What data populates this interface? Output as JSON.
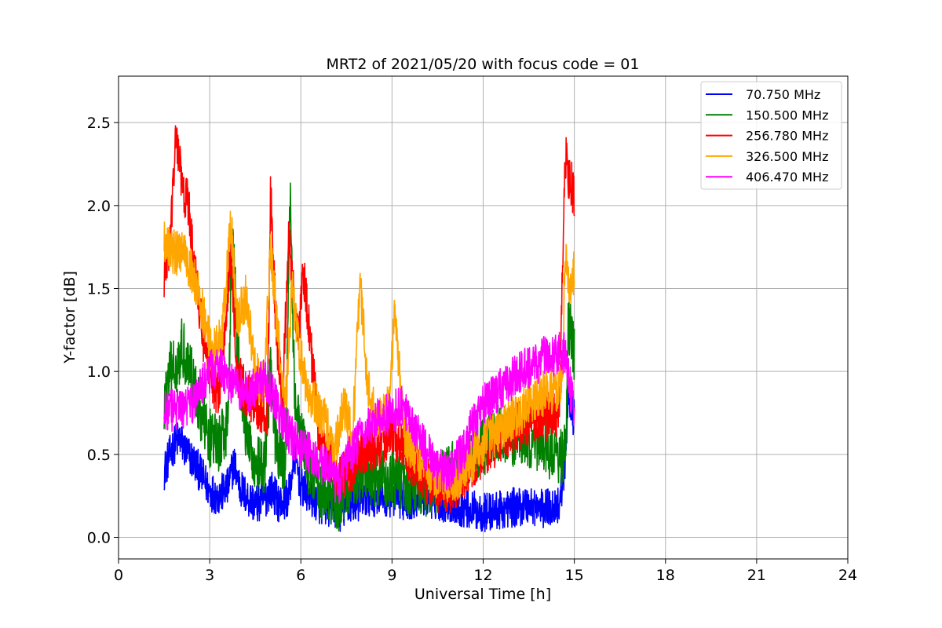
{
  "chart_data": {
    "type": "line",
    "title": "MRT2 of 2021/05/20 with focus code = 01",
    "xlabel": "Universal Time [h]",
    "ylabel": "Y-factor [dB]",
    "xlim": [
      0,
      24
    ],
    "ylim": [
      -0.13,
      2.78
    ],
    "xticks": [
      0,
      3,
      6,
      9,
      12,
      15,
      18,
      21,
      24
    ],
    "yticks": [
      0.0,
      0.5,
      1.0,
      1.5,
      2.0,
      2.5
    ],
    "xtick_labels": [
      "0",
      "3",
      "6",
      "9",
      "12",
      "15",
      "18",
      "21",
      "24"
    ],
    "ytick_labels": [
      "0.0",
      "0.5",
      "1.0",
      "1.5",
      "2.0",
      "2.5"
    ],
    "grid": true,
    "legend_position": "top-right",
    "series": [
      {
        "name": "70.750 MHz",
        "color": "#0000ff",
        "x": [
          1.5,
          1.8,
          2.0,
          2.2,
          2.5,
          2.8,
          3.0,
          3.3,
          3.6,
          3.8,
          4.0,
          4.2,
          4.5,
          4.8,
          5.0,
          5.3,
          5.6,
          5.8,
          6.0,
          6.3,
          6.6,
          7.0,
          7.3,
          7.6,
          8.0,
          8.5,
          9.0,
          9.5,
          10.0,
          10.5,
          11.0,
          11.5,
          12.0,
          12.5,
          13.0,
          13.5,
          14.0,
          14.5,
          14.7,
          14.8,
          15.0
        ],
        "y": [
          0.4,
          0.55,
          0.6,
          0.52,
          0.45,
          0.35,
          0.28,
          0.25,
          0.3,
          0.45,
          0.3,
          0.25,
          0.2,
          0.22,
          0.3,
          0.2,
          0.25,
          0.5,
          0.3,
          0.25,
          0.2,
          0.18,
          0.15,
          0.2,
          0.22,
          0.25,
          0.24,
          0.22,
          0.25,
          0.22,
          0.2,
          0.17,
          0.15,
          0.16,
          0.18,
          0.2,
          0.17,
          0.2,
          0.45,
          0.9,
          0.7
        ],
        "amplitude": 0.12
      },
      {
        "name": "150.500 MHz",
        "color": "#008000",
        "x": [
          1.5,
          1.7,
          1.9,
          2.1,
          2.4,
          2.7,
          3.0,
          3.3,
          3.6,
          3.75,
          3.9,
          4.2,
          4.5,
          4.8,
          5.0,
          5.2,
          5.5,
          5.65,
          5.8,
          6.0,
          6.3,
          6.6,
          6.9,
          7.2,
          7.5,
          8.0,
          8.5,
          9.0,
          9.5,
          10.0,
          10.5,
          11.0,
          11.5,
          12.0,
          12.5,
          13.0,
          13.5,
          14.0,
          14.5,
          14.7,
          14.8,
          15.0
        ],
        "y": [
          0.8,
          1.0,
          1.05,
          1.15,
          1.0,
          0.75,
          0.6,
          0.55,
          0.7,
          1.9,
          1.2,
          0.6,
          0.45,
          0.4,
          1.0,
          0.5,
          0.45,
          2.1,
          0.8,
          0.6,
          0.4,
          0.3,
          0.25,
          0.2,
          0.28,
          0.4,
          0.35,
          0.35,
          0.32,
          0.3,
          0.32,
          0.4,
          0.5,
          0.55,
          0.62,
          0.6,
          0.6,
          0.55,
          0.48,
          0.5,
          1.3,
          1.1
        ],
        "amplitude": 0.18
      },
      {
        "name": "256.780 MHz",
        "color": "#ff0000",
        "x": [
          1.5,
          1.7,
          1.9,
          2.1,
          2.3,
          2.5,
          2.8,
          3.0,
          3.3,
          3.7,
          3.9,
          4.2,
          4.6,
          4.9,
          5.0,
          5.2,
          5.4,
          5.6,
          5.75,
          5.9,
          6.1,
          6.3,
          6.6,
          7.0,
          7.3,
          7.6,
          8.0,
          8.5,
          9.0,
          9.5,
          10.0,
          10.5,
          11.0,
          11.5,
          12.0,
          12.5,
          13.0,
          13.5,
          14.0,
          14.5,
          14.7,
          14.8,
          15.0
        ],
        "y": [
          1.55,
          1.8,
          2.45,
          2.1,
          2.0,
          1.6,
          1.2,
          1.0,
          0.85,
          1.7,
          1.0,
          0.85,
          0.8,
          0.7,
          2.1,
          1.2,
          0.8,
          1.85,
          1.5,
          1.2,
          1.6,
          1.2,
          0.6,
          0.45,
          0.35,
          0.4,
          0.5,
          0.55,
          0.65,
          0.5,
          0.35,
          0.3,
          0.3,
          0.4,
          0.5,
          0.58,
          0.65,
          0.7,
          0.72,
          0.75,
          2.3,
          2.2,
          2.05
        ],
        "amplitude": 0.15
      },
      {
        "name": "326.500 MHz",
        "color": "#ffa500",
        "x": [
          1.5,
          1.7,
          1.9,
          2.1,
          2.3,
          2.6,
          2.9,
          3.1,
          3.4,
          3.7,
          3.9,
          4.2,
          4.5,
          4.8,
          5.0,
          5.2,
          5.5,
          5.7,
          5.9,
          6.2,
          6.5,
          6.8,
          7.1,
          7.4,
          7.7,
          7.95,
          8.2,
          8.5,
          8.9,
          9.1,
          9.4,
          9.8,
          10.2,
          10.6,
          11.0,
          11.4,
          11.8,
          12.2,
          12.6,
          13.0,
          13.4,
          13.8,
          14.2,
          14.6,
          14.7,
          14.8,
          15.0
        ],
        "y": [
          1.8,
          1.75,
          1.7,
          1.75,
          1.65,
          1.5,
          1.25,
          1.1,
          1.2,
          1.9,
          1.3,
          1.45,
          1.0,
          0.9,
          1.8,
          1.3,
          0.8,
          1.5,
          1.2,
          0.9,
          0.8,
          0.7,
          0.5,
          0.8,
          0.6,
          1.55,
          0.9,
          0.7,
          0.8,
          1.35,
          0.6,
          0.5,
          0.4,
          0.35,
          0.35,
          0.4,
          0.52,
          0.6,
          0.65,
          0.72,
          0.78,
          0.85,
          0.88,
          0.9,
          1.75,
          1.5,
          1.6
        ],
        "amplitude": 0.14
      },
      {
        "name": "406.470 MHz",
        "color": "#ff00ff",
        "x": [
          1.5,
          1.8,
          2.1,
          2.4,
          2.7,
          3.0,
          3.3,
          3.6,
          3.9,
          4.2,
          4.5,
          4.8,
          5.1,
          5.4,
          5.7,
          6.0,
          6.3,
          6.6,
          6.9,
          7.2,
          7.5,
          7.8,
          8.1,
          8.4,
          8.7,
          9.0,
          9.3,
          9.6,
          9.9,
          10.2,
          10.5,
          10.8,
          11.1,
          11.4,
          11.7,
          12.0,
          12.3,
          12.6,
          12.9,
          13.2,
          13.5,
          13.8,
          14.1,
          14.4,
          14.7,
          14.9,
          15.0
        ],
        "y": [
          0.78,
          0.76,
          0.78,
          0.8,
          0.9,
          1.0,
          1.05,
          0.95,
          0.9,
          0.88,
          0.9,
          0.95,
          0.85,
          0.7,
          0.6,
          0.55,
          0.5,
          0.45,
          0.42,
          0.3,
          0.45,
          0.55,
          0.65,
          0.7,
          0.72,
          0.75,
          0.8,
          0.7,
          0.6,
          0.5,
          0.42,
          0.38,
          0.45,
          0.55,
          0.7,
          0.8,
          0.85,
          0.9,
          0.95,
          1.0,
          1.02,
          1.05,
          1.1,
          1.1,
          1.12,
          0.85,
          0.78
        ],
        "amplitude": 0.13
      }
    ]
  }
}
